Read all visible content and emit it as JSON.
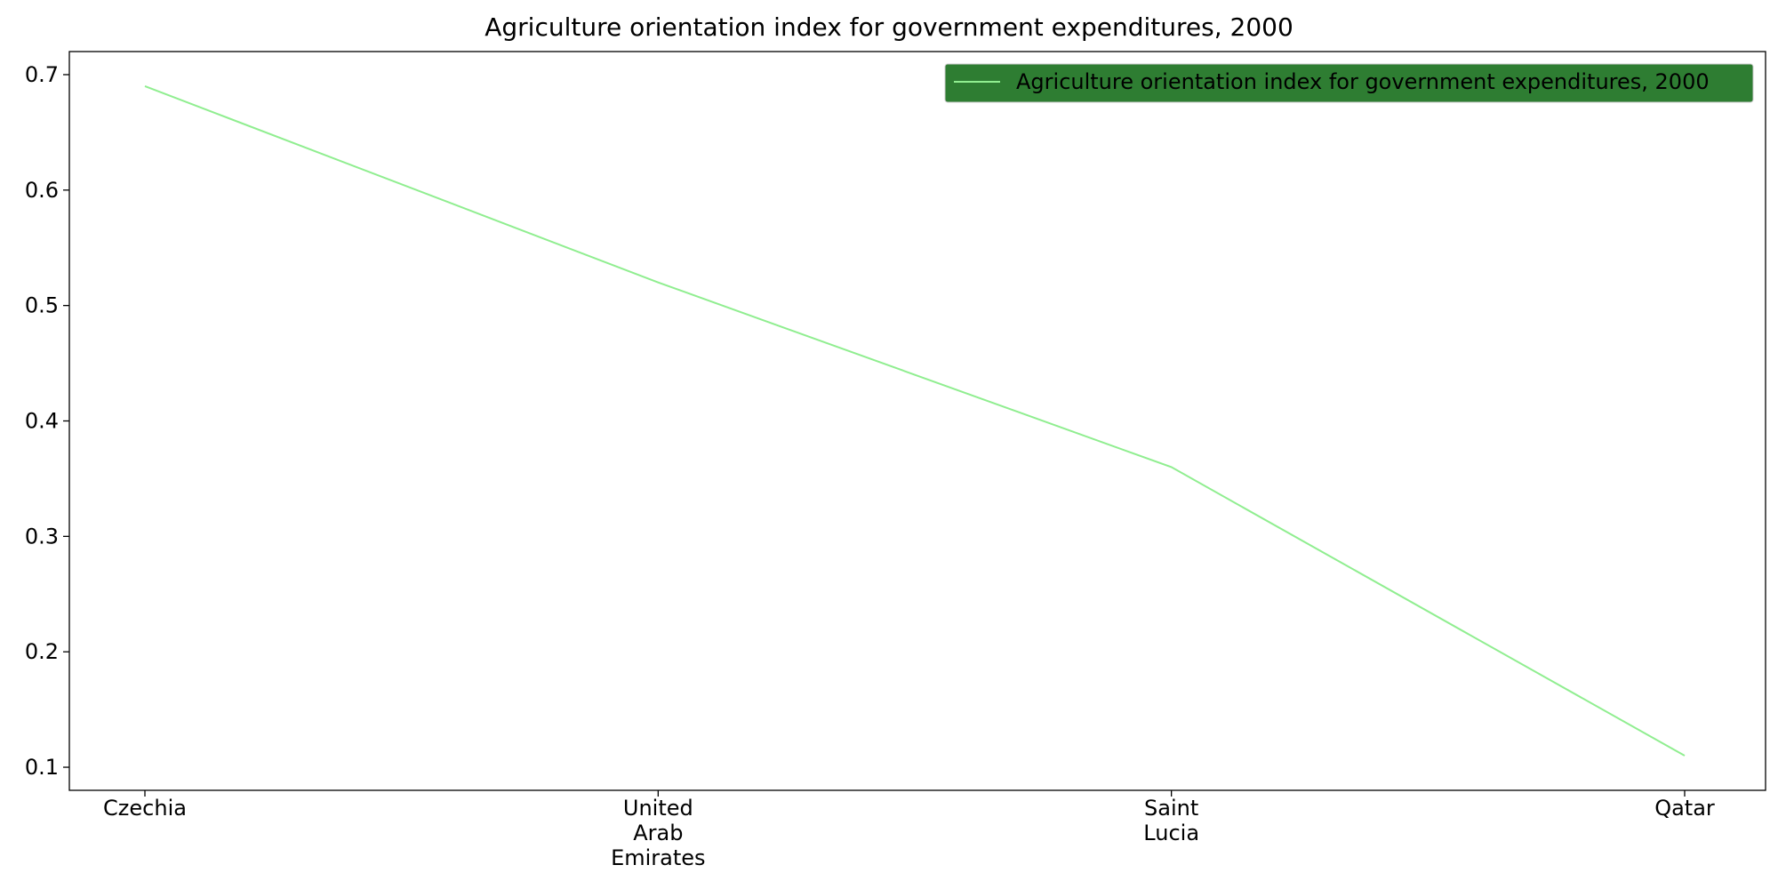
{
  "chart_data": {
    "type": "line",
    "title": "Agriculture orientation index for government expenditures, 2000",
    "categories": [
      [
        "Czechia"
      ],
      [
        "United",
        "Arab",
        "Emirates"
      ],
      [
        "Saint",
        "Lucia"
      ],
      [
        "Qatar"
      ]
    ],
    "series": [
      {
        "name": "Agriculture orientation index for government expenditures, 2000",
        "values": [
          0.69,
          0.52,
          0.36,
          0.11
        ],
        "color": "#90ee90"
      }
    ],
    "xlabel": "",
    "ylabel": "",
    "ylim": [
      0.08,
      0.72
    ],
    "yticks": [
      "0.1",
      "0.2",
      "0.3",
      "0.4",
      "0.5",
      "0.6",
      "0.7"
    ],
    "grid": false,
    "legend": {
      "placement": "top-right",
      "background": "#2e7d32"
    }
  }
}
